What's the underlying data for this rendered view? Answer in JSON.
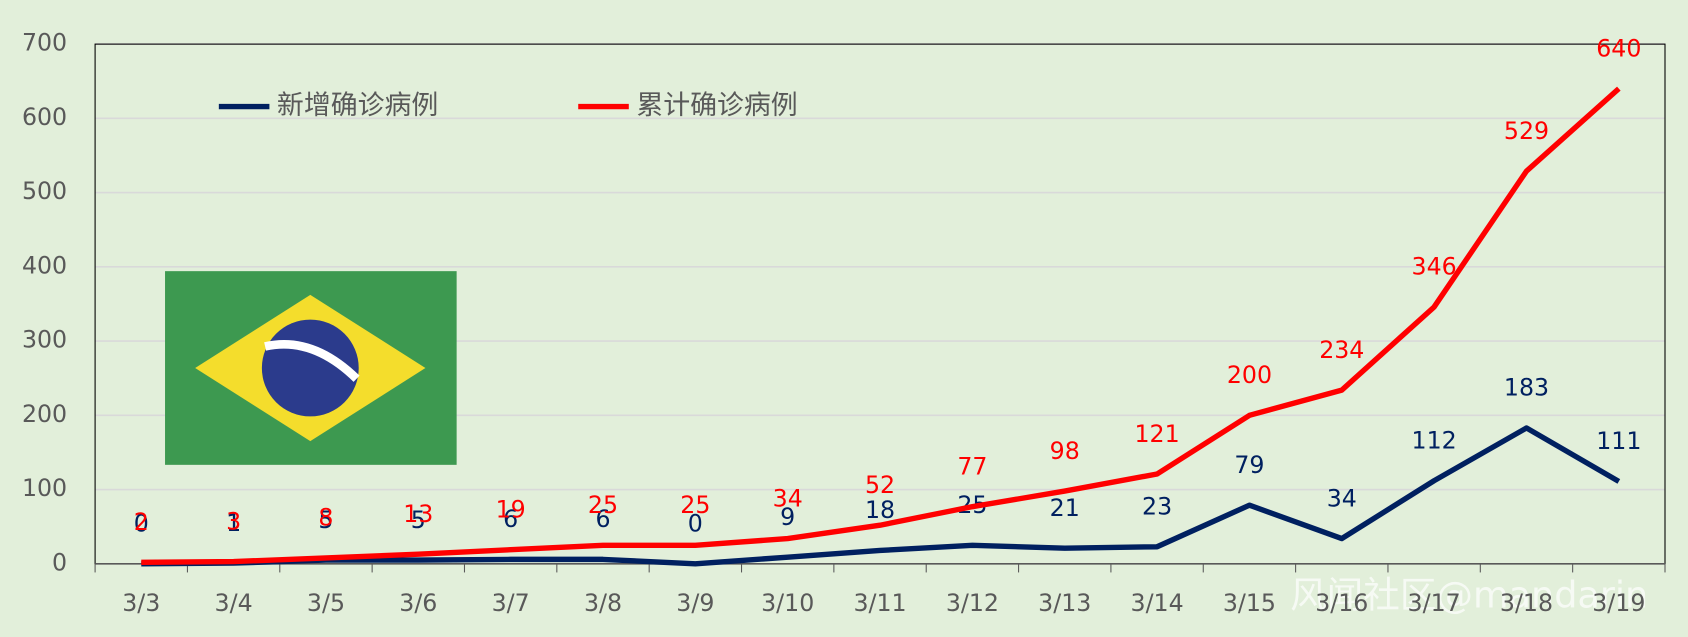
{
  "chart_data": {
    "type": "line",
    "categories": [
      "3/3",
      "3/4",
      "3/5",
      "3/6",
      "3/7",
      "3/8",
      "3/9",
      "3/10",
      "3/11",
      "3/12",
      "3/13",
      "3/14",
      "3/15",
      "3/16",
      "3/17",
      "3/18",
      "3/19"
    ],
    "series": [
      {
        "name": "新增确诊病例",
        "color": "#002060",
        "values": [
          0,
          1,
          5,
          5,
          6,
          6,
          0,
          9,
          18,
          25,
          21,
          23,
          79,
          34,
          112,
          183,
          111
        ]
      },
      {
        "name": "累计确诊病例",
        "color": "#ff0000",
        "values": [
          2,
          3,
          8,
          13,
          19,
          25,
          25,
          34,
          52,
          77,
          98,
          121,
          200,
          234,
          346,
          529,
          640
        ]
      }
    ],
    "ylim": [
      0,
      700
    ],
    "yticks": [
      0,
      100,
      200,
      300,
      400,
      500,
      600,
      700
    ],
    "grid": true,
    "watermark": "风闻社区@mandarin"
  }
}
